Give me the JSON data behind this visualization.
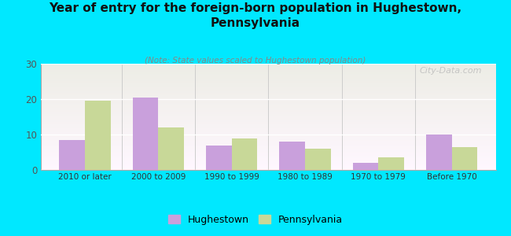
{
  "title": "Year of entry for the foreign-born population in Hughestown,\nPennsylvania",
  "subtitle": "(Note: State values scaled to Hughestown population)",
  "categories": [
    "2010 or later",
    "2000 to 2009",
    "1990 to 1999",
    "1980 to 1989",
    "1970 to 1979",
    "Before 1970"
  ],
  "hughestown": [
    8.5,
    20.5,
    7.0,
    8.0,
    2.0,
    10.0
  ],
  "pennsylvania": [
    19.5,
    12.0,
    9.0,
    6.0,
    3.5,
    6.5
  ],
  "bar_color_hughestown": "#c9a0dc",
  "bar_color_pennsylvania": "#c8d898",
  "background_color": "#00e8ff",
  "ylim": [
    0,
    30
  ],
  "yticks": [
    0,
    10,
    20,
    30
  ],
  "bar_width": 0.35,
  "legend_labels": [
    "Hughestown",
    "Pennsylvania"
  ],
  "watermark": "City-Data.com"
}
